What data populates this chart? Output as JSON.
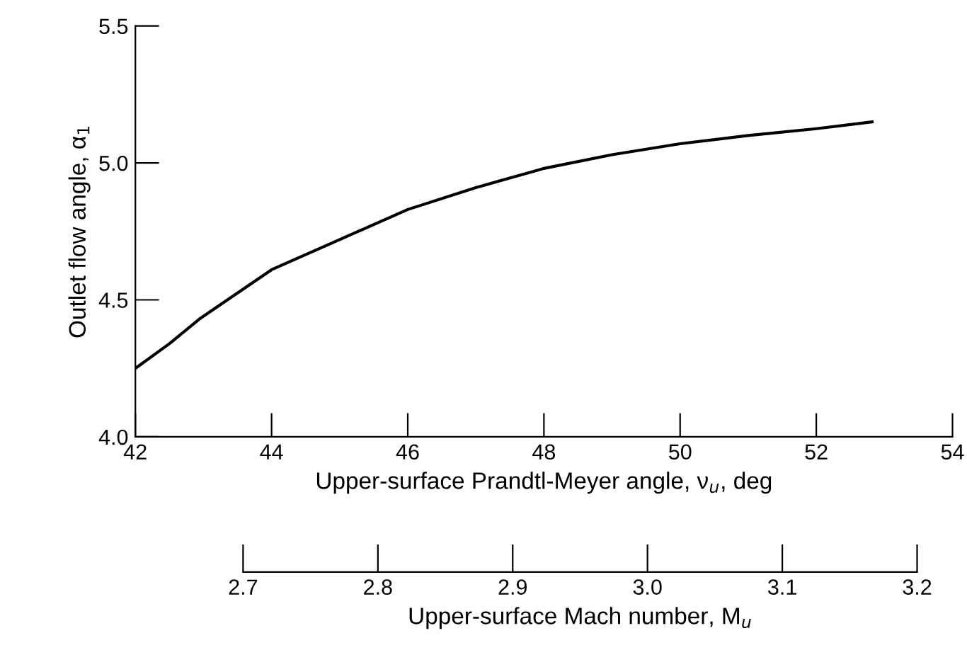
{
  "chart_data": {
    "type": "line",
    "xlabel": "Upper-surface Prandtl-Meyer angle, ν$_{u}$, deg",
    "ylabel": "Outlet flow angle, α$_{1}$",
    "x2label": "Upper-surface Mach number, M$_{u}$",
    "xlim": [
      42,
      54
    ],
    "xticks": [
      42,
      44,
      46,
      48,
      50,
      52,
      54
    ],
    "ylim": [
      4.0,
      5.5
    ],
    "yticks": [
      {
        "value": 4,
        "label": "4.0"
      },
      4.5,
      {
        "value": 5,
        "label": "5.0"
      },
      5.5
    ],
    "x2lim": [
      2.7,
      3.2
    ],
    "x2ticks": [
      2.7,
      2.8,
      2.9,
      {
        "value": 3,
        "label": "3.0"
      },
      3.1,
      3.2
    ],
    "grid": false,
    "legend": false,
    "marker": "none",
    "line_style": "solid",
    "series": [
      {
        "color": "#000000",
        "x": [
          42,
          42.5,
          42.94,
          44,
          45,
          46,
          47,
          48,
          49,
          50,
          51,
          52,
          52.82
        ],
        "values": [
          4.25,
          4.34,
          4.43,
          4.61,
          4.72,
          4.83,
          4.91,
          4.98,
          5.03,
          5.07,
          5.1,
          5.125,
          5.15
        ]
      }
    ]
  }
}
